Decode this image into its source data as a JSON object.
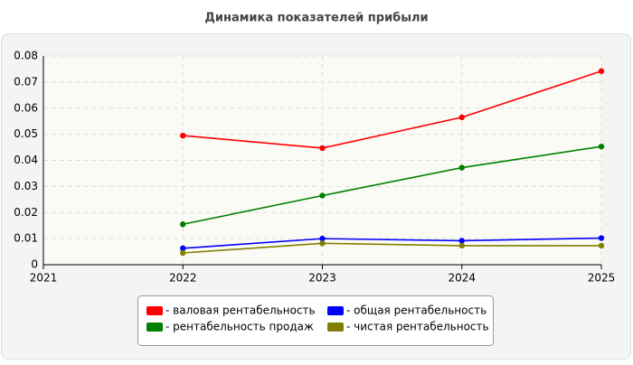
{
  "chart_data": {
    "type": "line",
    "title": "Динамика показателей прибыли",
    "x": [
      2022,
      2023,
      2024,
      2025
    ],
    "xlim": [
      2021,
      2025
    ],
    "xticks": [
      2021,
      2022,
      2023,
      2024,
      2025
    ],
    "ylim": [
      0,
      0.08
    ],
    "yticks": [
      0,
      0.01,
      0.02,
      0.03,
      0.04,
      0.05,
      0.06,
      0.07,
      0.08
    ],
    "grid": true,
    "series": [
      {
        "name": "- валовая рентабельность",
        "color": "#ff0000",
        "values": [
          0.0495,
          0.0447,
          0.0565,
          0.0742
        ]
      },
      {
        "name": "- рентабельность продаж",
        "color": "#008000",
        "values": [
          0.0155,
          0.0265,
          0.0372,
          0.0453
        ]
      },
      {
        "name": "- общая рентабельность",
        "color": "#0000ff",
        "values": [
          0.0063,
          0.01,
          0.0092,
          0.0102
        ]
      },
      {
        "name": "- чистая рентабельность",
        "color": "#808000",
        "values": [
          0.0045,
          0.0082,
          0.0073,
          0.0073
        ]
      }
    ]
  }
}
